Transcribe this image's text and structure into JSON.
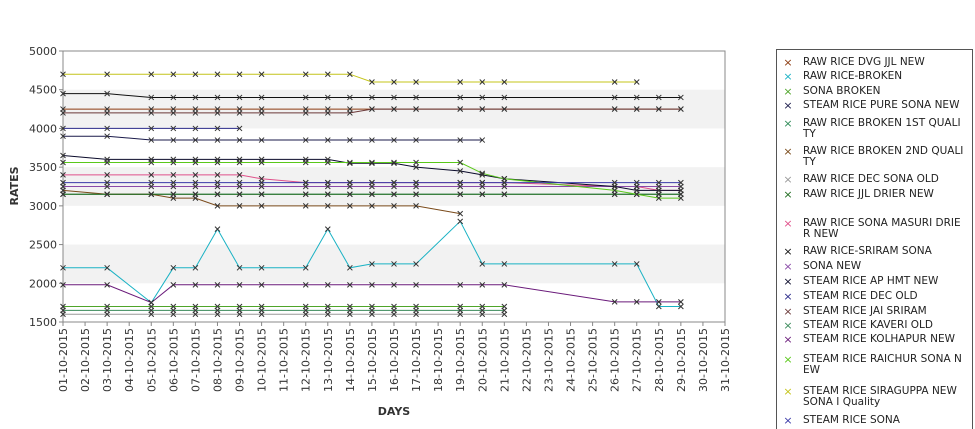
{
  "chart_data": {
    "type": "line",
    "title": "",
    "xlabel": "DAYS",
    "ylabel": "RATES",
    "ylim": [
      1500,
      5000
    ],
    "yticks": [
      "1500",
      "2000",
      "2500",
      "3000",
      "3500",
      "4000",
      "4500",
      "5000"
    ],
    "categories": [
      "01-10-2015",
      "02-10-2015",
      "03-10-2015",
      "04-10-2015",
      "05-10-2015",
      "06-10-2015",
      "07-10-2015",
      "08-10-2015",
      "09-10-2015",
      "10-10-2015",
      "11-10-2015",
      "12-10-2015",
      "13-10-2015",
      "14-10-2015",
      "15-10-2015",
      "16-10-2015",
      "17-10-2015",
      "18-10-2015",
      "19-10-2015",
      "20-10-2015",
      "21-10-2015",
      "22-10-2015",
      "23-10-2015",
      "24-10-2015",
      "25-10-2015",
      "26-10-2015",
      "27-10-2015",
      "28-10-2015",
      "29-10-2015",
      "30-10-2015",
      "31-10-2015"
    ],
    "grid": "alternating horizontal bands",
    "legend": "right",
    "series": [
      {
        "name": "RAW RICE DVG JJL NEW",
        "color": "#8b3a0f",
        "x": [
          1,
          3,
          5,
          6,
          7,
          8,
          9,
          10,
          12,
          13,
          14,
          15,
          16,
          17,
          19,
          20,
          21,
          26,
          27,
          28,
          29
        ],
        "values": [
          4250,
          4250,
          4250,
          4250,
          4250,
          4250,
          4250,
          4250,
          4250,
          4250,
          4250,
          4250,
          4250,
          4250,
          4250,
          4250,
          4250,
          4250,
          4250,
          4250,
          4250
        ]
      },
      {
        "name": "RAW RICE-BROKEN",
        "color": "#1ab2c4",
        "x": [
          1,
          3,
          5,
          6,
          7,
          8,
          9,
          10,
          12,
          13,
          14,
          15,
          16,
          17,
          19,
          20,
          21,
          26,
          27,
          28,
          29
        ],
        "values": [
          2200,
          2200,
          1750,
          2200,
          2200,
          2700,
          2200,
          2200,
          2200,
          2700,
          2200,
          2250,
          2250,
          2250,
          2800,
          2250,
          2250,
          2250,
          2250,
          1700,
          1700
        ]
      },
      {
        "name": "SONA BROKEN",
        "color": "#4fa52a",
        "x": [
          1,
          3,
          5,
          6,
          7,
          8,
          9,
          10,
          12,
          13,
          14,
          15,
          16,
          17,
          19,
          20,
          21
        ],
        "values": [
          1700,
          1700,
          1700,
          1700,
          1700,
          1700,
          1700,
          1700,
          1700,
          1700,
          1700,
          1700,
          1700,
          1700,
          1700,
          1700,
          1700
        ]
      },
      {
        "name": "STEAM RICE PURE SONA NEW",
        "color": "#1a1a4a",
        "x": [
          1,
          3,
          5,
          6,
          7,
          8,
          9,
          10,
          12,
          13,
          14,
          15,
          16,
          17,
          19,
          20
        ],
        "values": [
          3900,
          3900,
          3850,
          3850,
          3850,
          3850,
          3850,
          3850,
          3850,
          3850,
          3850,
          3850,
          3850,
          3850,
          3850,
          3850
        ]
      },
      {
        "name": "RAW RICE BROKEN 1ST QUALITY",
        "color": "#2e8b57",
        "x": [
          1,
          3,
          5,
          6,
          7,
          8,
          9,
          10,
          12,
          13,
          14,
          15,
          16,
          17,
          19,
          20,
          21,
          26,
          27,
          28,
          29
        ],
        "values": [
          3150,
          3150,
          3150,
          3150,
          3150,
          3150,
          3150,
          3150,
          3150,
          3150,
          3150,
          3150,
          3150,
          3150,
          3150,
          3150,
          3150,
          3150,
          3150,
          3150,
          3150
        ]
      },
      {
        "name": "RAW RICE BROKEN 2ND QUALITY",
        "color": "#7a4a1a",
        "x": [
          1,
          3,
          5,
          6,
          7,
          8,
          9,
          10,
          12,
          13,
          14,
          15,
          16,
          17,
          19
        ],
        "values": [
          3200,
          3150,
          3150,
          3100,
          3100,
          3000,
          3000,
          3000,
          3000,
          3000,
          3000,
          3000,
          3000,
          3000,
          2900
        ]
      },
      {
        "name": "RAW RICE DEC SONA OLD",
        "color": "#999999",
        "x": [
          1,
          3,
          5,
          6,
          7,
          8,
          9,
          10,
          12,
          13,
          14,
          15,
          16,
          17,
          19,
          20,
          21
        ],
        "values": [
          1600,
          1600,
          1600,
          1600,
          1600,
          1600,
          1600,
          1600,
          1600,
          1600,
          1600,
          1600,
          1600,
          1600,
          1600,
          1600,
          1600
        ]
      },
      {
        "name": "RAW RICE JJL DRIER NEW",
        "color": "#1f6b1f",
        "x": [
          1,
          3,
          5,
          6,
          7,
          8,
          9,
          10,
          12,
          13,
          14,
          15,
          16,
          17,
          19,
          20,
          21,
          26,
          27,
          28,
          29
        ],
        "values": [
          3150,
          3150,
          3150,
          3150,
          3150,
          3150,
          3150,
          3150,
          3150,
          3150,
          3150,
          3150,
          3150,
          3150,
          3150,
          3150,
          3150,
          3150,
          3150,
          3150,
          3150
        ]
      },
      {
        "name": "RAW RICE SONA MASURI DRIER NEW",
        "color": "#e0508a",
        "x": [
          1,
          3,
          5,
          6,
          7,
          8,
          9,
          10,
          12,
          13,
          14,
          15,
          16,
          17,
          19,
          20,
          21,
          26,
          27,
          28,
          29
        ],
        "values": [
          3400,
          3400,
          3400,
          3400,
          3400,
          3400,
          3400,
          3350,
          3300,
          3300,
          3300,
          3300,
          3300,
          3300,
          3300,
          3300,
          3300,
          3250,
          3250,
          3200,
          3200
        ]
      },
      {
        "name": "RAW RICE-SRIRAM SONA",
        "color": "#111111",
        "x": [
          1,
          3,
          5,
          6,
          7,
          8,
          9,
          10,
          12,
          13,
          14,
          15,
          16,
          17,
          19,
          20,
          21,
          26,
          27,
          28,
          29
        ],
        "values": [
          4450,
          4450,
          4400,
          4400,
          4400,
          4400,
          4400,
          4400,
          4400,
          4400,
          4400,
          4400,
          4400,
          4400,
          4400,
          4400,
          4400,
          4400,
          4400,
          4400,
          4400
        ]
      },
      {
        "name": "SONA NEW",
        "color": "#8a4aa8",
        "x": [
          1,
          3,
          5,
          6,
          7,
          8,
          9,
          10,
          12,
          13,
          14,
          15,
          16,
          17,
          19,
          20,
          21,
          26,
          27,
          28,
          29
        ],
        "values": [
          3250,
          3250,
          3250,
          3250,
          3250,
          3250,
          3250,
          3250,
          3250,
          3250,
          3250,
          3250,
          3250,
          3250,
          3250,
          3250,
          3250,
          3250,
          3250,
          3250,
          3250
        ]
      },
      {
        "name": "STEAM RICE AP HMT NEW",
        "color": "#0a0a2a",
        "x": [
          1,
          3,
          5,
          6,
          7,
          8,
          9,
          10,
          12,
          13,
          14,
          15,
          16,
          17,
          19,
          20,
          21,
          26,
          27,
          28,
          29
        ],
        "values": [
          3650,
          3600,
          3600,
          3600,
          3600,
          3600,
          3600,
          3600,
          3600,
          3600,
          3550,
          3550,
          3550,
          3500,
          3450,
          3400,
          3350,
          3250,
          3200,
          3200,
          3200
        ]
      },
      {
        "name": "STEAM RICE DEC OLD",
        "color": "#2a2a8a",
        "x": [
          1,
          3,
          5,
          6,
          7,
          8,
          9
        ],
        "values": [
          4000,
          4000,
          4000,
          4000,
          4000,
          4000,
          4000
        ]
      },
      {
        "name": "STEAM RICE JAI SRIRAM",
        "color": "#6b3a3a",
        "x": [
          1,
          3,
          5,
          6,
          7,
          8,
          9,
          10,
          12,
          13,
          14,
          15,
          16,
          17,
          19,
          20,
          21,
          26,
          27,
          28,
          29
        ],
        "values": [
          4200,
          4200,
          4200,
          4200,
          4200,
          4200,
          4200,
          4200,
          4200,
          4200,
          4200,
          4250,
          4250,
          4250,
          4250,
          4250,
          4250,
          4250,
          4250,
          4250,
          4250
        ]
      },
      {
        "name": "STEAM RICE KAVERI OLD",
        "color": "#3a8a5a",
        "x": [
          1,
          3,
          5,
          6,
          7,
          8,
          9,
          10,
          12,
          13,
          14,
          15,
          16,
          17,
          19,
          20,
          21
        ],
        "values": [
          1650,
          1650,
          1650,
          1650,
          1650,
          1650,
          1650,
          1650,
          1650,
          1650,
          1650,
          1650,
          1650,
          1650,
          1650,
          1650,
          1650
        ]
      },
      {
        "name": "STEAM RICE KOLHAPUR NEW",
        "color": "#6a1a7a",
        "x": [
          1,
          3,
          5,
          6,
          7,
          8,
          9,
          10,
          12,
          13,
          14,
          15,
          16,
          17,
          19,
          20,
          21,
          26,
          27,
          28,
          29
        ],
        "values": [
          1980,
          1980,
          1750,
          1980,
          1980,
          1980,
          1980,
          1980,
          1980,
          1980,
          1980,
          1980,
          1980,
          1980,
          1980,
          1980,
          1980,
          1760,
          1760,
          1760,
          1760
        ]
      },
      {
        "name": "STEAM RICE RAICHUR SONA NEW",
        "color": "#5ac81a",
        "x": [
          1,
          3,
          5,
          6,
          7,
          8,
          9,
          10,
          12,
          13,
          14,
          15,
          16,
          17,
          19,
          20,
          21,
          26,
          27,
          28,
          29
        ],
        "values": [
          3560,
          3560,
          3560,
          3560,
          3560,
          3560,
          3560,
          3560,
          3560,
          3560,
          3560,
          3560,
          3560,
          3560,
          3560,
          3420,
          3350,
          3200,
          3150,
          3100,
          3100
        ]
      },
      {
        "name": "STEAM RICE SIRAGUPPA NEW SONA I Quality",
        "color": "#c4c41a",
        "x": [
          1,
          3,
          5,
          6,
          7,
          8,
          9,
          10,
          12,
          13,
          14,
          15,
          16,
          17,
          19,
          20,
          21,
          26,
          27
        ],
        "values": [
          4700,
          4700,
          4700,
          4700,
          4700,
          4700,
          4700,
          4700,
          4700,
          4700,
          4700,
          4600,
          4600,
          4600,
          4600,
          4600,
          4600,
          4600,
          4600
        ]
      },
      {
        "name": "STEAM RICE SONA",
        "color": "#3a3aa8",
        "x": [
          1,
          3,
          5,
          6,
          7,
          8,
          9,
          10,
          12,
          13,
          14,
          15,
          16,
          17,
          19,
          20,
          21,
          26,
          27,
          28,
          29
        ],
        "values": [
          3300,
          3300,
          3300,
          3300,
          3300,
          3300,
          3300,
          3300,
          3300,
          3300,
          3300,
          3300,
          3300,
          3300,
          3300,
          3300,
          3300,
          3300,
          3300,
          3300,
          3300
        ]
      }
    ]
  }
}
